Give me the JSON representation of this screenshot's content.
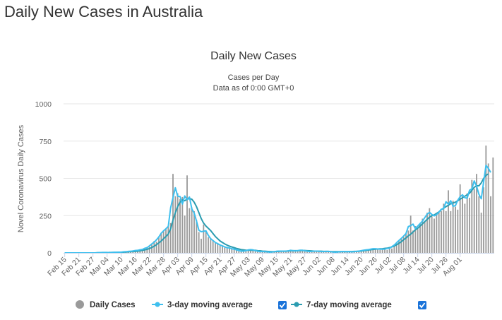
{
  "page": {
    "title": "Daily New Cases in Australia"
  },
  "chart_data": {
    "type": "bar",
    "title": "Daily New Cases",
    "subtitle": [
      "Cases per Day",
      "Data as of 0:00 GMT+0"
    ],
    "xlabel": "",
    "ylabel": "Novel Coronavirus Daily Cases",
    "ylim": [
      0,
      1000
    ],
    "y_ticks": [
      0,
      250,
      500,
      750,
      1000
    ],
    "x_tick_labels": [
      "Feb 15",
      "Feb 21",
      "Feb 27",
      "Mar 04",
      "Mar 10",
      "Mar 16",
      "Mar 22",
      "Mar 28",
      "Apr 03",
      "Apr 09",
      "Apr 15",
      "Apr 21",
      "Apr 27",
      "May 03",
      "May 09",
      "May 15",
      "May 21",
      "May 27",
      "Jun 02",
      "Jun 08",
      "Jun 14",
      "Jun 20",
      "Jun 26",
      "Jul 02",
      "Jul 08",
      "Jul 14",
      "Jul 20",
      "Jul 26",
      "Aug 01"
    ],
    "x_start_date": "Feb 15",
    "grid": true,
    "legend_position": "bottom",
    "colors": {
      "daily": "#9a9a9a",
      "ma3": "#3ebfee",
      "ma7": "#2b9cb0",
      "checkbox": "#1a73d9"
    },
    "series": [
      {
        "name": "Daily Cases",
        "type": "bar",
        "values": [
          0,
          0,
          0,
          0,
          0,
          0,
          0,
          0,
          0,
          0,
          0,
          0,
          0,
          0,
          0,
          3,
          2,
          4,
          3,
          2,
          2,
          4,
          5,
          3,
          7,
          6,
          8,
          10,
          13,
          12,
          15,
          20,
          16,
          28,
          25,
          40,
          40,
          60,
          80,
          75,
          110,
          135,
          150,
          160,
          175,
          200,
          530,
          380,
          400,
          360,
          375,
          250,
          520,
          300,
          305,
          280,
          220,
          140,
          95,
          190,
          150,
          105,
          100,
          80,
          70,
          60,
          55,
          45,
          35,
          40,
          30,
          30,
          25,
          20,
          15,
          12,
          10,
          15,
          20,
          25,
          20,
          15,
          10,
          10,
          8,
          10,
          5,
          5,
          5,
          8,
          10,
          15,
          12,
          10,
          8,
          15,
          20,
          15,
          10,
          15,
          20,
          18,
          15,
          10,
          10,
          8,
          12,
          15,
          10,
          10,
          8,
          10,
          12,
          8,
          5,
          5,
          6,
          8,
          10,
          8,
          10,
          5,
          5,
          8,
          10,
          12,
          15,
          18,
          20,
          22,
          25,
          28,
          30,
          25,
          20,
          25,
          30,
          20,
          40,
          30,
          55,
          70,
          80,
          100,
          110,
          130,
          150,
          250,
          150,
          180,
          160,
          200,
          230,
          210,
          270,
          300,
          245,
          230,
          270,
          270,
          280,
          330,
          280,
          420,
          280,
          350,
          310,
          290,
          460,
          380,
          330,
          400,
          370,
          490,
          430,
          530,
          380,
          270,
          440,
          720,
          600,
          380,
          640
        ]
      },
      {
        "name": "3-day moving average",
        "type": "line",
        "values": [
          0,
          0,
          0,
          0,
          0,
          0,
          0,
          0,
          0,
          0,
          0,
          0,
          0,
          0,
          1,
          2,
          3,
          3,
          3,
          2,
          3,
          4,
          4,
          5,
          5,
          7,
          8,
          10,
          11,
          13,
          16,
          17,
          21,
          23,
          31,
          35,
          47,
          60,
          72,
          88,
          107,
          132,
          148,
          162,
          178,
          302,
          370,
          437,
          380,
          378,
          328,
          382,
          357,
          375,
          295,
          268,
          213,
          152,
          142,
          145,
          148,
          118,
          95,
          83,
          70,
          62,
          53,
          47,
          40,
          35,
          33,
          28,
          25,
          20,
          16,
          12,
          12,
          15,
          20,
          22,
          20,
          15,
          12,
          9,
          9,
          8,
          7,
          5,
          6,
          8,
          11,
          12,
          12,
          11,
          11,
          14,
          17,
          15,
          13,
          15,
          18,
          18,
          14,
          12,
          9,
          10,
          12,
          12,
          11,
          9,
          9,
          10,
          10,
          8,
          6,
          5,
          6,
          8,
          9,
          9,
          8,
          8,
          7,
          8,
          10,
          12,
          15,
          18,
          20,
          22,
          25,
          28,
          28,
          26,
          25,
          25,
          25,
          30,
          30,
          42,
          52,
          68,
          83,
          97,
          113,
          130,
          177,
          183,
          193,
          163,
          180,
          197,
          213,
          237,
          260,
          272,
          258,
          248,
          257,
          273,
          293,
          297,
          343,
          327,
          350,
          313,
          317,
          353,
          377,
          390,
          370,
          367,
          420,
          430,
          483,
          447,
          393,
          363,
          477,
          587,
          567,
          540
        ]
      },
      {
        "name": "7-day moving average",
        "type": "line",
        "values": [
          0,
          0,
          0,
          0,
          0,
          0,
          0,
          0,
          0,
          0,
          0,
          0,
          0,
          0,
          1,
          1,
          2,
          2,
          2,
          3,
          3,
          3,
          3,
          4,
          4,
          5,
          6,
          7,
          8,
          9,
          10,
          12,
          14,
          17,
          20,
          24,
          29,
          36,
          45,
          55,
          67,
          80,
          95,
          110,
          127,
          160,
          220,
          270,
          310,
          340,
          355,
          350,
          360,
          365,
          360,
          340,
          310,
          270,
          230,
          200,
          180,
          165,
          150,
          130,
          110,
          95,
          80,
          70,
          60,
          52,
          45,
          40,
          35,
          30,
          26,
          22,
          20,
          18,
          18,
          18,
          18,
          17,
          15,
          14,
          12,
          11,
          10,
          9,
          8,
          8,
          9,
          10,
          11,
          11,
          12,
          13,
          14,
          15,
          15,
          15,
          16,
          16,
          16,
          15,
          14,
          13,
          12,
          12,
          11,
          11,
          10,
          10,
          10,
          9,
          8,
          8,
          8,
          8,
          8,
          8,
          8,
          9,
          9,
          10,
          10,
          11,
          13,
          15,
          17,
          19,
          21,
          23,
          25,
          26,
          27,
          28,
          30,
          32,
          35,
          40,
          46,
          54,
          64,
          75,
          88,
          100,
          115,
          125,
          140,
          155,
          165,
          180,
          195,
          210,
          225,
          240,
          250,
          255,
          265,
          275,
          290,
          300,
          310,
          320,
          330,
          335,
          340,
          350,
          360,
          370,
          380,
          390,
          400,
          420,
          440,
          450,
          450,
          470,
          500,
          520,
          530
        ]
      }
    ]
  },
  "legend": {
    "items": [
      {
        "label": "Daily Cases",
        "icon": "gray-dot-icon",
        "checkbox": false
      },
      {
        "label": "3-day moving average",
        "icon": "line-marker-icon",
        "checkbox": true
      },
      {
        "label": "7-day moving average",
        "icon": "line-marker-icon",
        "checkbox": true
      }
    ]
  }
}
